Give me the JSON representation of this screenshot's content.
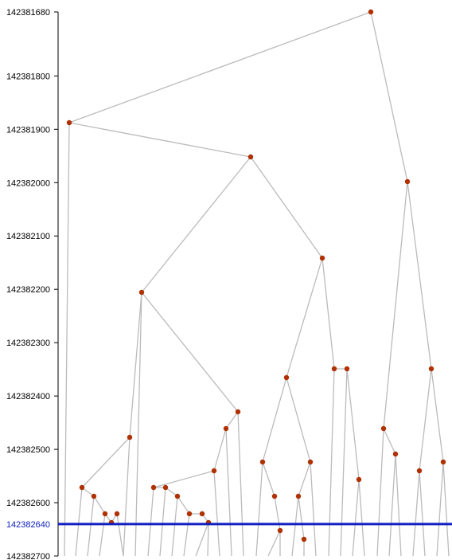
{
  "diagram": {
    "type": "tree",
    "y_axis": {
      "ticks": [
        {
          "value": 142381680,
          "label": "142381680"
        },
        {
          "value": 142381800,
          "label": "142381800"
        },
        {
          "value": 142381900,
          "label": "142381900"
        },
        {
          "value": 142382000,
          "label": "142382000"
        },
        {
          "value": 142382100,
          "label": "142382100"
        },
        {
          "value": 142382200,
          "label": "142382200"
        },
        {
          "value": 142382300,
          "label": "142382300"
        },
        {
          "value": 142382400,
          "label": "142382400"
        },
        {
          "value": 142382500,
          "label": "142382500"
        },
        {
          "value": 142382600,
          "label": "142382600"
        },
        {
          "value": 142382700,
          "label": "142382700"
        }
      ]
    },
    "highlight": {
      "value": 142382640,
      "label": "142382640",
      "color": "#1020c0"
    },
    "colors": {
      "edge": "#bbbbbb",
      "node": "#b03000",
      "axis": "#000000"
    }
  }
}
